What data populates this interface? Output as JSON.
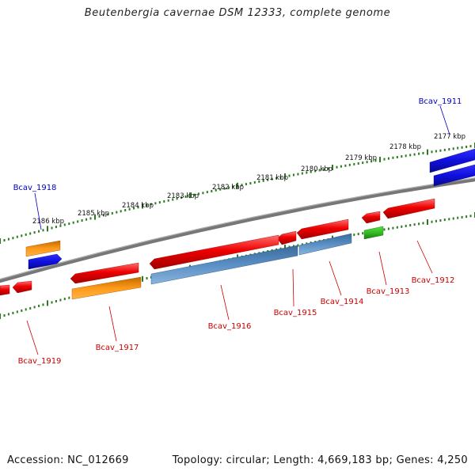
{
  "title": "Beutenbergia cavernae DSM 12333, complete genome",
  "footer": {
    "accession": "Accession: NC_012669",
    "topology": "Topology: circular; Length: 4,669,183 bp; Genes: 4,250"
  },
  "colors": {
    "backbone": "#777777",
    "tick": "#2a7a1e",
    "label_red": "#cc0000",
    "label_blue": "#0000bb",
    "gene_red": "#ee0000",
    "gene_orange": "#ff8c00",
    "gene_blue": "#1010dd",
    "gene_steel": "#4a7fb5",
    "gene_green": "#33bb22"
  },
  "scale": {
    "labels": [
      "2177 kbp",
      "2178 kbp",
      "2179 kbp",
      "2180 kbp",
      "2181 kbp",
      "2182 kbp",
      "2183 kbp",
      "2184 kbp",
      "2185 kbp",
      "2186 kbp"
    ]
  },
  "genes": [
    {
      "name": "Bcav_1911",
      "color": "gene_blue"
    },
    {
      "name": "Bcav_1912",
      "color": "gene_red"
    },
    {
      "name": "Bcav_1913",
      "color": "gene_green"
    },
    {
      "name": "Bcav_1914",
      "color": "gene_steel"
    },
    {
      "name": "Bcav_1915",
      "color": "gene_red"
    },
    {
      "name": "Bcav_1916",
      "color": "gene_steel"
    },
    {
      "name": "Bcav_1917",
      "color": "gene_orange"
    },
    {
      "name": "Bcav_1918",
      "color": "gene_orange"
    },
    {
      "name": "Bcav_1919",
      "color": "gene_red"
    }
  ]
}
